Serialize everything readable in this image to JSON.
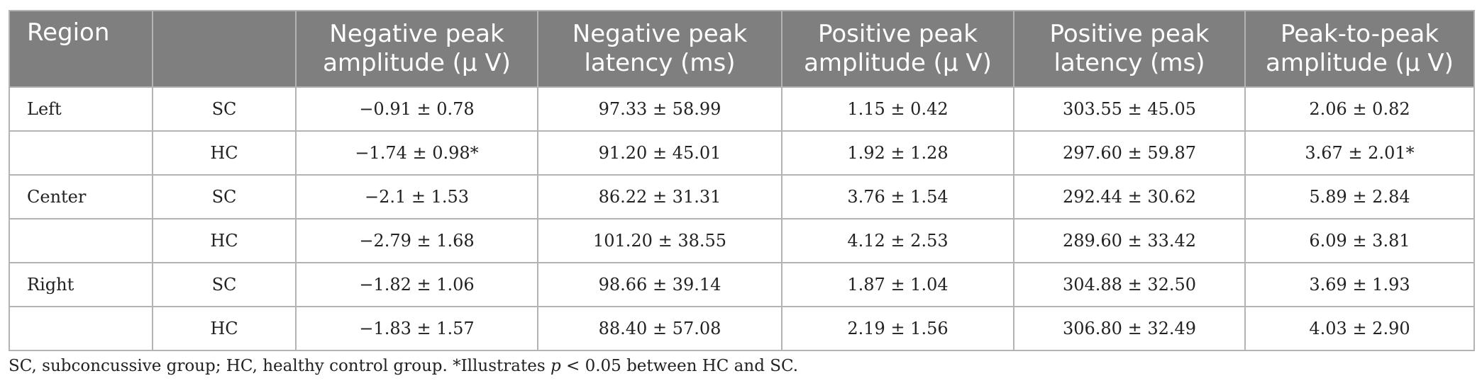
{
  "table": {
    "headers": [
      "Region",
      "",
      "Negative peak amplitude (μ V)",
      "Negative peak latency (ms)",
      "Positive peak amplitude (μ V)",
      "Positive peak latency (ms)",
      "Peak-to-peak amplitude (μ V)"
    ],
    "rows": [
      [
        "Left",
        "SC",
        "−0.91 ± 0.78",
        "97.33 ± 58.99",
        "1.15 ± 0.42",
        "303.55 ± 45.05",
        "2.06 ± 0.82"
      ],
      [
        "",
        "HC",
        "−1.74 ± 0.98*",
        "91.20 ± 45.01",
        "1.92 ± 1.28",
        "297.60 ± 59.87",
        "3.67 ± 2.01*"
      ],
      [
        "Center",
        "SC",
        "−2.1 ± 1.53",
        "86.22 ± 31.31",
        "3.76 ± 1.54",
        "292.44 ± 30.62",
        "5.89 ± 2.84"
      ],
      [
        "",
        "HC",
        "−2.79 ± 1.68",
        "101.20 ± 38.55",
        "4.12 ± 2.53",
        "289.60 ± 33.42",
        "6.09 ± 3.81"
      ],
      [
        "Right",
        "SC",
        "−1.82 ± 1.06",
        "98.66 ± 39.14",
        "1.87 ± 1.04",
        "304.88 ± 32.50",
        "3.69 ± 1.93"
      ],
      [
        "",
        "HC",
        "−1.83 ± 1.57",
        "88.40 ± 57.08",
        "2.19 ± 1.56",
        "306.80 ± 32.49",
        "4.03 ± 2.90"
      ]
    ]
  },
  "footnote": {
    "pre": "SC, subconcussive group; HC, healthy control group. *Illustrates ",
    "p": "p",
    "post": " < 0.05 between HC and SC."
  },
  "colors": {
    "header_bg": "#7f7f7f",
    "header_text": "#ffffff",
    "border": "#b3b3b3"
  }
}
